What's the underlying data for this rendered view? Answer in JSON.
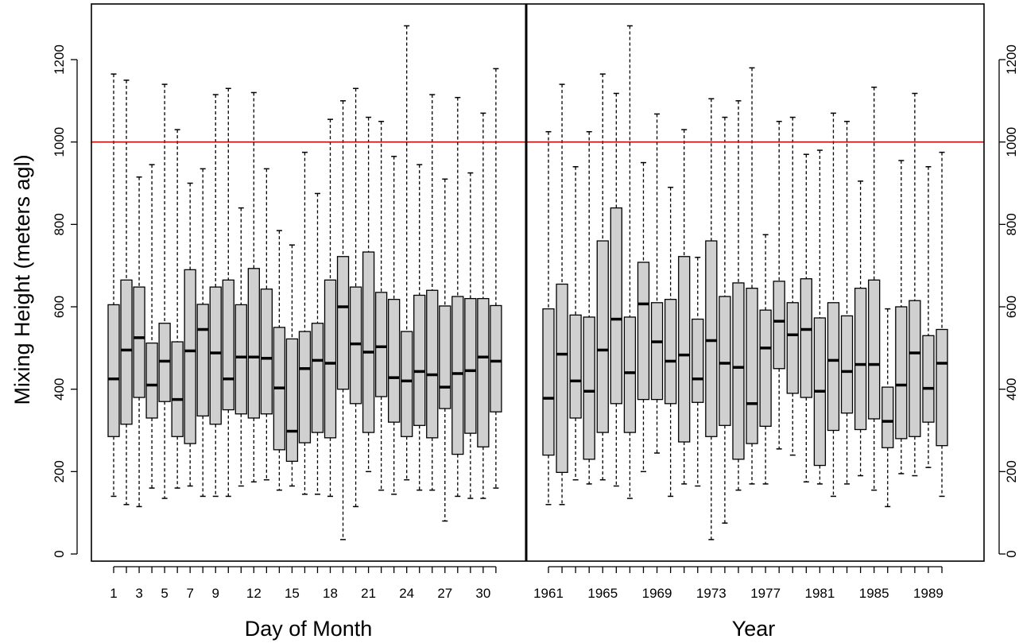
{
  "chart_data": [
    {
      "type": "boxplot",
      "panel": "left",
      "xlabel": "Day of Month",
      "ylabel": "Mixing Height (meters agl)",
      "ylim": [
        0,
        1300
      ],
      "yticks": [
        "0",
        "200",
        "400",
        "600",
        "800",
        "1000",
        "1200"
      ],
      "xtick_labels": [
        "1",
        "3",
        "5",
        "7",
        "9",
        "12",
        "15",
        "18",
        "21",
        "24",
        "27",
        "30"
      ],
      "xtick_label_positions": [
        1,
        3,
        5,
        7,
        9,
        12,
        15,
        18,
        21,
        24,
        27,
        30
      ],
      "categories": [
        1,
        2,
        3,
        4,
        5,
        6,
        7,
        8,
        9,
        10,
        11,
        12,
        13,
        14,
        15,
        16,
        17,
        18,
        19,
        20,
        21,
        22,
        23,
        24,
        25,
        26,
        27,
        28,
        29,
        30,
        31
      ],
      "boxes": [
        {
          "min": 140,
          "q1": 285,
          "median": 425,
          "q3": 605,
          "max": 1165
        },
        {
          "min": 120,
          "q1": 315,
          "median": 495,
          "q3": 665,
          "max": 1150
        },
        {
          "min": 115,
          "q1": 380,
          "median": 525,
          "q3": 648,
          "max": 915
        },
        {
          "min": 160,
          "q1": 330,
          "median": 410,
          "q3": 512,
          "max": 945
        },
        {
          "min": 135,
          "q1": 370,
          "median": 468,
          "q3": 560,
          "max": 1140
        },
        {
          "min": 160,
          "q1": 285,
          "median": 375,
          "q3": 515,
          "max": 1030
        },
        {
          "min": 165,
          "q1": 268,
          "median": 493,
          "q3": 690,
          "max": 900
        },
        {
          "min": 140,
          "q1": 335,
          "median": 545,
          "q3": 606,
          "max": 935
        },
        {
          "min": 140,
          "q1": 315,
          "median": 488,
          "q3": 648,
          "max": 1115
        },
        {
          "min": 140,
          "q1": 350,
          "median": 425,
          "q3": 665,
          "max": 1130
        },
        {
          "min": 165,
          "q1": 340,
          "median": 478,
          "q3": 605,
          "max": 840
        },
        {
          "min": 175,
          "q1": 330,
          "median": 478,
          "q3": 693,
          "max": 1120
        },
        {
          "min": 180,
          "q1": 340,
          "median": 475,
          "q3": 643,
          "max": 935
        },
        {
          "min": 155,
          "q1": 253,
          "median": 403,
          "q3": 550,
          "max": 785
        },
        {
          "min": 165,
          "q1": 225,
          "median": 298,
          "q3": 522,
          "max": 750
        },
        {
          "min": 145,
          "q1": 270,
          "median": 450,
          "q3": 540,
          "max": 975
        },
        {
          "min": 145,
          "q1": 295,
          "median": 470,
          "q3": 560,
          "max": 875
        },
        {
          "min": 140,
          "q1": 282,
          "median": 463,
          "q3": 665,
          "max": 1055
        },
        {
          "min": 35,
          "q1": 400,
          "median": 600,
          "q3": 722,
          "max": 1100
        },
        {
          "min": 115,
          "q1": 365,
          "median": 510,
          "q3": 648,
          "max": 1130
        },
        {
          "min": 200,
          "q1": 295,
          "median": 490,
          "q3": 733,
          "max": 1060
        },
        {
          "min": 155,
          "q1": 382,
          "median": 503,
          "q3": 635,
          "max": 1050
        },
        {
          "min": 145,
          "q1": 320,
          "median": 428,
          "q3": 618,
          "max": 965
        },
        {
          "min": 180,
          "q1": 285,
          "median": 420,
          "q3": 540,
          "max": 1282
        },
        {
          "min": 155,
          "q1": 312,
          "median": 443,
          "q3": 628,
          "max": 945
        },
        {
          "min": 155,
          "q1": 282,
          "median": 435,
          "q3": 640,
          "max": 1115
        },
        {
          "min": 80,
          "q1": 353,
          "median": 405,
          "q3": 602,
          "max": 910
        },
        {
          "min": 140,
          "q1": 242,
          "median": 438,
          "q3": 625,
          "max": 1108
        },
        {
          "min": 135,
          "q1": 293,
          "median": 445,
          "q3": 620,
          "max": 925
        },
        {
          "min": 135,
          "q1": 260,
          "median": 478,
          "q3": 620,
          "max": 1070
        },
        {
          "min": 160,
          "q1": 345,
          "median": 468,
          "q3": 603,
          "max": 1178
        }
      ]
    },
    {
      "type": "boxplot",
      "panel": "right",
      "xlabel": "Year",
      "ylim": [
        0,
        1300
      ],
      "yticks": [
        "0",
        "200",
        "400",
        "600",
        "800",
        "1000",
        "1200"
      ],
      "xtick_labels": [
        "1961",
        "1965",
        "1969",
        "1973",
        "1977",
        "1981",
        "1985",
        "1989"
      ],
      "xtick_label_positions": [
        1961,
        1965,
        1969,
        1973,
        1977,
        1981,
        1985,
        1989
      ],
      "categories": [
        1961,
        1962,
        1963,
        1964,
        1965,
        1966,
        1967,
        1968,
        1969,
        1970,
        1971,
        1972,
        1973,
        1974,
        1975,
        1976,
        1977,
        1978,
        1979,
        1980,
        1981,
        1982,
        1983,
        1984,
        1985,
        1986,
        1987,
        1988,
        1989,
        1990
      ],
      "boxes": [
        {
          "min": 120,
          "q1": 240,
          "median": 378,
          "q3": 595,
          "max": 1025
        },
        {
          "min": 120,
          "q1": 198,
          "median": 485,
          "q3": 655,
          "max": 1140
        },
        {
          "min": 180,
          "q1": 330,
          "median": 420,
          "q3": 580,
          "max": 940
        },
        {
          "min": 170,
          "q1": 230,
          "median": 395,
          "q3": 575,
          "max": 1025
        },
        {
          "min": 180,
          "q1": 295,
          "median": 495,
          "q3": 760,
          "max": 1165
        },
        {
          "min": 165,
          "q1": 365,
          "median": 570,
          "q3": 840,
          "max": 1118
        },
        {
          "min": 135,
          "q1": 295,
          "median": 440,
          "q3": 575,
          "max": 1282
        },
        {
          "min": 200,
          "q1": 375,
          "median": 607,
          "q3": 708,
          "max": 950
        },
        {
          "min": 245,
          "q1": 375,
          "median": 515,
          "q3": 610,
          "max": 1068
        },
        {
          "min": 140,
          "q1": 365,
          "median": 468,
          "q3": 618,
          "max": 890
        },
        {
          "min": 170,
          "q1": 272,
          "median": 483,
          "q3": 722,
          "max": 1030
        },
        {
          "min": 165,
          "q1": 368,
          "median": 425,
          "q3": 570,
          "max": 720
        },
        {
          "min": 35,
          "q1": 285,
          "median": 518,
          "q3": 760,
          "max": 1105
        },
        {
          "min": 75,
          "q1": 312,
          "median": 463,
          "q3": 625,
          "max": 1060
        },
        {
          "min": 155,
          "q1": 230,
          "median": 453,
          "q3": 658,
          "max": 1100
        },
        {
          "min": 170,
          "q1": 268,
          "median": 365,
          "q3": 645,
          "max": 1180
        },
        {
          "min": 170,
          "q1": 310,
          "median": 500,
          "q3": 592,
          "max": 775
        },
        {
          "min": 255,
          "q1": 450,
          "median": 565,
          "q3": 662,
          "max": 1050
        },
        {
          "min": 240,
          "q1": 390,
          "median": 532,
          "q3": 610,
          "max": 1060
        },
        {
          "min": 175,
          "q1": 380,
          "median": 545,
          "q3": 668,
          "max": 970
        },
        {
          "min": 170,
          "q1": 215,
          "median": 395,
          "q3": 573,
          "max": 980
        },
        {
          "min": 140,
          "q1": 300,
          "median": 470,
          "q3": 610,
          "max": 1070
        },
        {
          "min": 170,
          "q1": 342,
          "median": 443,
          "q3": 578,
          "max": 1050
        },
        {
          "min": 190,
          "q1": 302,
          "median": 460,
          "q3": 645,
          "max": 905
        },
        {
          "min": 155,
          "q1": 328,
          "median": 460,
          "q3": 665,
          "max": 1133
        },
        {
          "min": 115,
          "q1": 258,
          "median": 322,
          "q3": 405,
          "max": 595
        },
        {
          "min": 195,
          "q1": 280,
          "median": 410,
          "q3": 600,
          "max": 955
        },
        {
          "min": 190,
          "q1": 285,
          "median": 488,
          "q3": 615,
          "max": 1118
        },
        {
          "min": 210,
          "q1": 320,
          "median": 402,
          "q3": 530,
          "max": 940
        },
        {
          "min": 140,
          "q1": 263,
          "median": 463,
          "q3": 545,
          "max": 975
        }
      ]
    }
  ],
  "reference_line": {
    "value": 1000,
    "color": "#dd0000"
  },
  "colors": {
    "box_fill": "#d0d0d0",
    "axis": "#000000"
  }
}
